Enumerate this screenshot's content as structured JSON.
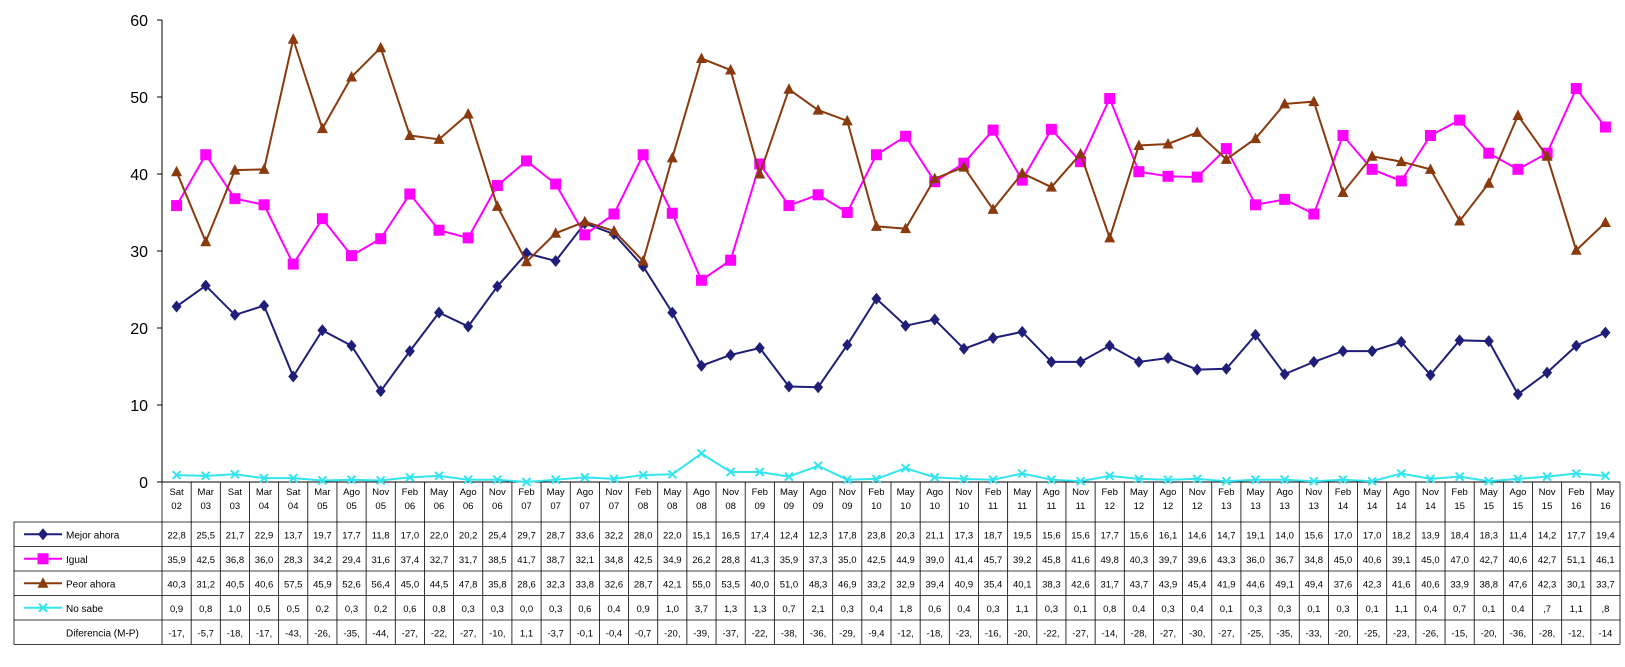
{
  "chart_data": {
    "type": "line",
    "ylim": [
      0,
      60
    ],
    "yticks": [
      0,
      10,
      20,
      30,
      40,
      50,
      60
    ],
    "grid": false,
    "legend": "data-table-left",
    "categories": [
      [
        "Sat",
        "02"
      ],
      [
        "Mar",
        "03"
      ],
      [
        "Sat",
        "03"
      ],
      [
        "Mar",
        "04"
      ],
      [
        "Sat",
        "04"
      ],
      [
        "Mar",
        "05"
      ],
      [
        "Ago",
        "05"
      ],
      [
        "Nov",
        "05"
      ],
      [
        "Feb",
        "06"
      ],
      [
        "May",
        "06"
      ],
      [
        "Ago",
        "06"
      ],
      [
        "Nov",
        "06"
      ],
      [
        "Feb",
        "07"
      ],
      [
        "May",
        "07"
      ],
      [
        "Ago",
        "07"
      ],
      [
        "Nov",
        "07"
      ],
      [
        "Feb",
        "08"
      ],
      [
        "May",
        "08"
      ],
      [
        "Ago",
        "08"
      ],
      [
        "Nov",
        "08"
      ],
      [
        "Feb",
        "09"
      ],
      [
        "May",
        "09"
      ],
      [
        "Ago",
        "09"
      ],
      [
        "Nov",
        "09"
      ],
      [
        "Feb",
        "10"
      ],
      [
        "May",
        "10"
      ],
      [
        "Ago",
        "10"
      ],
      [
        "Nov",
        "10"
      ],
      [
        "Feb",
        "11"
      ],
      [
        "May",
        "11"
      ],
      [
        "Ago",
        "11"
      ],
      [
        "Nov",
        "11"
      ],
      [
        "Feb",
        "12"
      ],
      [
        "May",
        "12"
      ],
      [
        "Ago",
        "12"
      ],
      [
        "Nov",
        "12"
      ],
      [
        "Feb",
        "13"
      ],
      [
        "May",
        "13"
      ],
      [
        "Ago",
        "13"
      ],
      [
        "Nov",
        "13"
      ],
      [
        "Feb",
        "14"
      ],
      [
        "May",
        "14"
      ],
      [
        "Ago",
        "14"
      ],
      [
        "Nov",
        "14"
      ],
      [
        "Feb",
        "15"
      ],
      [
        "May",
        "15"
      ],
      [
        "Ago",
        "15"
      ],
      [
        "Nov",
        "15"
      ],
      [
        "Feb",
        "16"
      ],
      [
        "May",
        "16"
      ]
    ],
    "series": [
      {
        "name": "Mejor ahora",
        "color": "#1f1f7a",
        "marker": "diamond",
        "values": [
          22.8,
          25.5,
          21.7,
          22.9,
          13.7,
          19.7,
          17.7,
          11.8,
          17.0,
          22.0,
          20.2,
          25.4,
          29.7,
          28.7,
          33.6,
          32.2,
          28.0,
          22.0,
          15.1,
          16.5,
          17.4,
          12.4,
          12.3,
          17.8,
          23.8,
          20.3,
          21.1,
          17.3,
          18.7,
          19.5,
          15.6,
          15.6,
          17.7,
          15.6,
          16.1,
          14.6,
          14.7,
          19.1,
          14.0,
          15.6,
          17.0,
          17.0,
          18.2,
          13.9,
          18.4,
          18.3,
          11.4,
          14.2,
          17.7,
          19.4
        ],
        "table": [
          "22,8",
          "25,5",
          "21,7",
          "22,9",
          "13,7",
          "19,7",
          "17,7",
          "11,8",
          "17,0",
          "22,0",
          "20,2",
          "25,4",
          "29,7",
          "28,7",
          "33,6",
          "32,2",
          "28,0",
          "22,0",
          "15,1",
          "16,5",
          "17,4",
          "12,4",
          "12,3",
          "17,8",
          "23,8",
          "20,3",
          "21,1",
          "17,3",
          "18,7",
          "19,5",
          "15,6",
          "15,6",
          "17,7",
          "15,6",
          "16,1",
          "14,6",
          "14,7",
          "19,1",
          "14,0",
          "15,6",
          "17,0",
          "17,0",
          "18,2",
          "13,9",
          "18,4",
          "18,3",
          "11,4",
          "14,2",
          "17,7",
          "19,4"
        ]
      },
      {
        "name": "Igual",
        "color": "#ff00ff",
        "marker": "square",
        "values": [
          35.9,
          42.5,
          36.8,
          36.0,
          28.3,
          34.2,
          29.4,
          31.6,
          37.4,
          32.7,
          31.7,
          38.5,
          41.7,
          38.7,
          32.1,
          34.8,
          42.5,
          34.9,
          26.2,
          28.8,
          41.3,
          35.9,
          37.3,
          35.0,
          42.5,
          44.9,
          39.0,
          41.4,
          45.7,
          39.2,
          45.8,
          41.6,
          49.8,
          40.3,
          39.7,
          39.6,
          43.3,
          36.0,
          36.7,
          34.8,
          45.0,
          40.6,
          39.1,
          45.0,
          47.0,
          42.7,
          40.6,
          42.7,
          51.1,
          46.1
        ],
        "table": [
          "35,9",
          "42,5",
          "36,8",
          "36,0",
          "28,3",
          "34,2",
          "29,4",
          "31,6",
          "37,4",
          "32,7",
          "31,7",
          "38,5",
          "41,7",
          "38,7",
          "32,1",
          "34,8",
          "42,5",
          "34,9",
          "26,2",
          "28,8",
          "41,3",
          "35,9",
          "37,3",
          "35,0",
          "42,5",
          "44,9",
          "39,0",
          "41,4",
          "45,7",
          "39,2",
          "45,8",
          "41,6",
          "49,8",
          "40,3",
          "39,7",
          "39,6",
          "43,3",
          "36,0",
          "36,7",
          "34,8",
          "45,0",
          "40,6",
          "39,1",
          "45,0",
          "47,0",
          "42,7",
          "40,6",
          "42,7",
          "51,1",
          "46,1"
        ]
      },
      {
        "name": "Peor ahora",
        "color": "#8b3a0e",
        "marker": "triangle",
        "values": [
          40.3,
          31.2,
          40.5,
          40.6,
          57.5,
          45.9,
          52.6,
          56.4,
          45.0,
          44.5,
          47.8,
          35.8,
          28.6,
          32.3,
          33.8,
          32.6,
          28.7,
          42.1,
          55.0,
          53.5,
          40.0,
          51.0,
          48.3,
          46.9,
          33.2,
          32.9,
          39.4,
          40.9,
          35.4,
          40.1,
          38.3,
          42.6,
          31.7,
          43.7,
          43.9,
          45.4,
          41.9,
          44.6,
          49.1,
          49.4,
          37.6,
          42.3,
          41.6,
          40.6,
          33.9,
          38.8,
          47.6,
          42.3,
          30.1,
          33.7
        ],
        "table": [
          "40,3",
          "31,2",
          "40,5",
          "40,6",
          "57,5",
          "45,9",
          "52,6",
          "56,4",
          "45,0",
          "44,5",
          "47,8",
          "35,8",
          "28,6",
          "32,3",
          "33,8",
          "32,6",
          "28,7",
          "42,1",
          "55,0",
          "53,5",
          "40,0",
          "51,0",
          "48,3",
          "46,9",
          "33,2",
          "32,9",
          "39,4",
          "40,9",
          "35,4",
          "40,1",
          "38,3",
          "42,6",
          "31,7",
          "43,7",
          "43,9",
          "45,4",
          "41,9",
          "44,6",
          "49,1",
          "49,4",
          "37,6",
          "42,3",
          "41,6",
          "40,6",
          "33,9",
          "38,8",
          "47,6",
          "42,3",
          "30,1",
          "33,7"
        ]
      },
      {
        "name": "No sabe",
        "color": "#33e5ee",
        "marker": "x",
        "values": [
          0.9,
          0.8,
          1.0,
          0.5,
          0.5,
          0.2,
          0.3,
          0.2,
          0.6,
          0.8,
          0.3,
          0.3,
          0.0,
          0.3,
          0.6,
          0.4,
          0.9,
          1.0,
          3.7,
          1.3,
          1.3,
          0.7,
          2.1,
          0.3,
          0.4,
          1.8,
          0.6,
          0.4,
          0.3,
          1.1,
          0.3,
          0.1,
          0.8,
          0.4,
          0.3,
          0.4,
          0.1,
          0.3,
          0.3,
          0.1,
          0.3,
          0.1,
          1.1,
          0.4,
          0.7,
          0.1,
          0.4,
          0.7,
          1.1,
          0.8
        ],
        "table": [
          "0,9",
          "0,8",
          "1,0",
          "0,5",
          "0,5",
          "0,2",
          "0,3",
          "0,2",
          "0,6",
          "0,8",
          "0,3",
          "0,3",
          "0,0",
          "0,3",
          "0,6",
          "0,4",
          "0,9",
          "1,0",
          "3,7",
          "1,3",
          "1,3",
          "0,7",
          "2,1",
          "0,3",
          "0,4",
          "1,8",
          "0,6",
          "0,4",
          "0,3",
          "1,1",
          "0,3",
          "0,1",
          "0,8",
          "0,4",
          "0,3",
          "0,4",
          "0,1",
          "0,3",
          "0,3",
          "0,1",
          "0,3",
          "0,1",
          "1,1",
          "0,4",
          "0,7",
          "0,1",
          "0,4",
          ",7",
          "1,1",
          ",8"
        ]
      }
    ],
    "difference_row": {
      "name": "Diferencia (M-P)",
      "table": [
        "-17,",
        "-5,7",
        "-18,",
        "-17,",
        "-43,",
        "-26,",
        "-35,",
        "-44,",
        "-27,",
        "-22,",
        "-27,",
        "-10,",
        "1,1",
        "-3,7",
        "-0,1",
        "-0,4",
        "-0,7",
        "-20,",
        "-39,",
        "-37,",
        "-22,",
        "-38,",
        "-36,",
        "-29,",
        "-9,4",
        "-12,",
        "-18,",
        "-23,",
        "-16,",
        "-20,",
        "-22,",
        "-27,",
        "-14,",
        "-28,",
        "-27,",
        "-30,",
        "-27,",
        "-25,",
        "-35,",
        "-33,",
        "-20,",
        "-25,",
        "-23,",
        "-26,",
        "-15,",
        "-20,",
        "-36,",
        "-28,",
        "-12,",
        "-14"
      ]
    }
  }
}
